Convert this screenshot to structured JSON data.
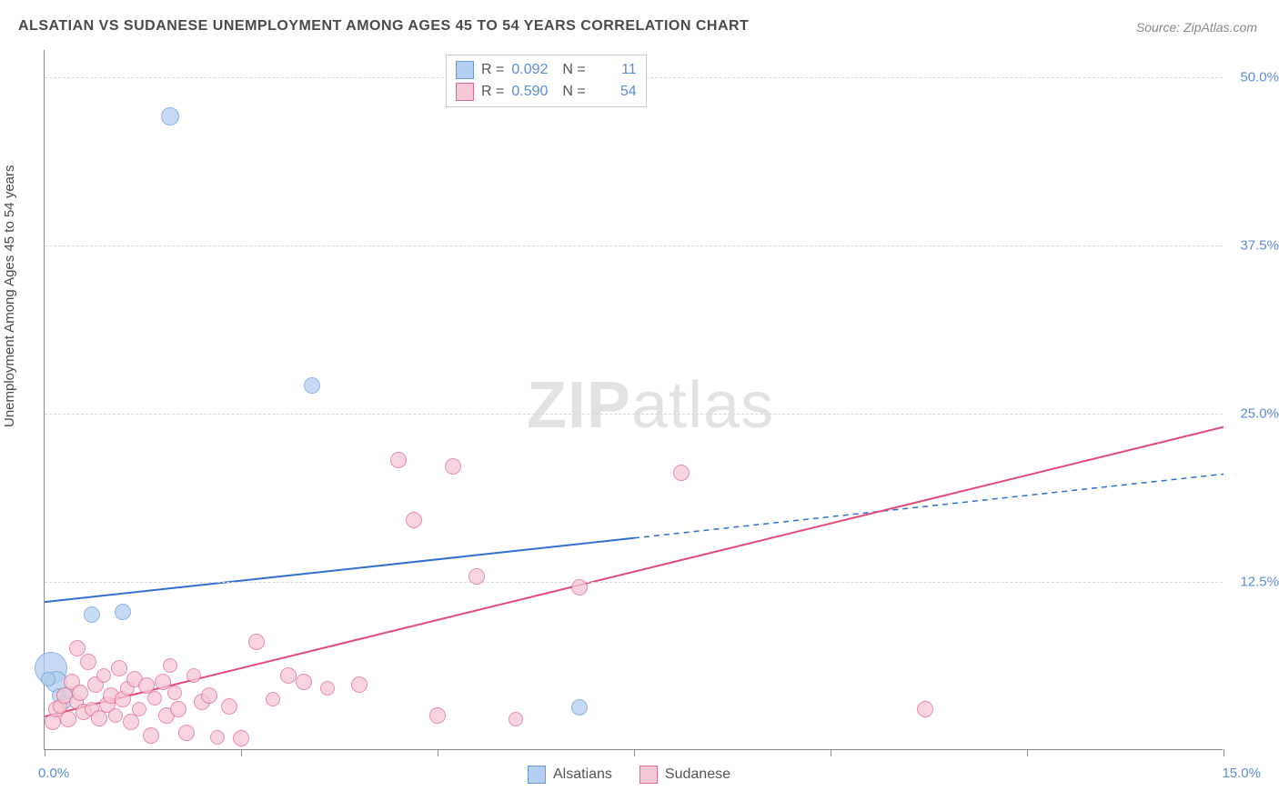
{
  "title": "ALSATIAN VS SUDANESE UNEMPLOYMENT AMONG AGES 45 TO 54 YEARS CORRELATION CHART",
  "source": "Source: ZipAtlas.com",
  "y_axis_label": "Unemployment Among Ages 45 to 54 years",
  "watermark": {
    "part1": "ZIP",
    "part2": "atlas"
  },
  "chart": {
    "type": "scatter",
    "xlim": [
      0,
      15
    ],
    "ylim": [
      0,
      52
    ],
    "x_ticks": [
      0,
      2.5,
      5,
      7.5,
      10,
      12.5,
      15
    ],
    "x_tick_labels": {
      "0": "0.0%",
      "15": "15.0%"
    },
    "y_ticks": [
      12.5,
      25,
      37.5,
      50
    ],
    "y_tick_labels": {
      "12.5": "12.5%",
      "25": "25.0%",
      "37.5": "37.5%",
      "50": "50.0%"
    },
    "background_color": "#ffffff",
    "grid_color": "#d8d8d8",
    "axis_color": "#888888",
    "tick_label_color": "#5b8dd6",
    "series": [
      {
        "name": "Alsatians",
        "color_fill": "#b3cef0",
        "color_stroke": "#6a9bd8",
        "r_value": "0.092",
        "n_value": "11",
        "trend": {
          "y_at_x0": 11.0,
          "y_at_x15": 20.5,
          "solid_until_x": 7.5,
          "color": "#2e6fd0",
          "width": 2
        },
        "points": [
          {
            "x": 1.6,
            "y": 47.0,
            "r": 10
          },
          {
            "x": 0.08,
            "y": 6.0,
            "r": 18
          },
          {
            "x": 0.15,
            "y": 5.0,
            "r": 12
          },
          {
            "x": 0.6,
            "y": 10.0,
            "r": 9
          },
          {
            "x": 1.0,
            "y": 10.2,
            "r": 9
          },
          {
            "x": 3.4,
            "y": 27.0,
            "r": 9
          },
          {
            "x": 6.8,
            "y": 3.1,
            "r": 9
          },
          {
            "x": 0.18,
            "y": 4.0,
            "r": 8
          },
          {
            "x": 0.25,
            "y": 3.5,
            "r": 8
          },
          {
            "x": 0.05,
            "y": 5.2,
            "r": 8
          },
          {
            "x": 0.3,
            "y": 4.2,
            "r": 7
          }
        ]
      },
      {
        "name": "Sudanese",
        "color_fill": "#f6c7d4",
        "color_stroke": "#e06a8e",
        "r_value": "0.590",
        "n_value": "54",
        "trend": {
          "y_at_x0": 2.5,
          "y_at_x15": 24.0,
          "solid_until_x": 15,
          "color": "#e34b7a",
          "width": 2
        },
        "points": [
          {
            "x": 0.1,
            "y": 2.0,
            "r": 9
          },
          {
            "x": 0.15,
            "y": 3.0,
            "r": 9
          },
          {
            "x": 0.2,
            "y": 3.2,
            "r": 8
          },
          {
            "x": 0.25,
            "y": 4.0,
            "r": 9
          },
          {
            "x": 0.3,
            "y": 2.2,
            "r": 9
          },
          {
            "x": 0.35,
            "y": 5.0,
            "r": 9
          },
          {
            "x": 0.4,
            "y": 3.5,
            "r": 8
          },
          {
            "x": 0.45,
            "y": 4.2,
            "r": 9
          },
          {
            "x": 0.5,
            "y": 2.8,
            "r": 9
          },
          {
            "x": 0.55,
            "y": 6.5,
            "r": 9
          },
          {
            "x": 0.6,
            "y": 3.0,
            "r": 8
          },
          {
            "x": 0.65,
            "y": 4.8,
            "r": 9
          },
          {
            "x": 0.7,
            "y": 2.3,
            "r": 9
          },
          {
            "x": 0.75,
            "y": 5.5,
            "r": 8
          },
          {
            "x": 0.8,
            "y": 3.3,
            "r": 9
          },
          {
            "x": 0.85,
            "y": 4.0,
            "r": 9
          },
          {
            "x": 0.9,
            "y": 2.5,
            "r": 8
          },
          {
            "x": 0.95,
            "y": 6.0,
            "r": 9
          },
          {
            "x": 1.0,
            "y": 3.7,
            "r": 9
          },
          {
            "x": 1.05,
            "y": 4.5,
            "r": 8
          },
          {
            "x": 1.1,
            "y": 2.0,
            "r": 9
          },
          {
            "x": 1.15,
            "y": 5.2,
            "r": 9
          },
          {
            "x": 1.2,
            "y": 3.0,
            "r": 8
          },
          {
            "x": 1.3,
            "y": 4.7,
            "r": 9
          },
          {
            "x": 1.35,
            "y": 1.0,
            "r": 9
          },
          {
            "x": 1.4,
            "y": 3.8,
            "r": 8
          },
          {
            "x": 1.5,
            "y": 5.0,
            "r": 9
          },
          {
            "x": 1.55,
            "y": 2.5,
            "r": 9
          },
          {
            "x": 1.65,
            "y": 4.2,
            "r": 8
          },
          {
            "x": 1.7,
            "y": 3.0,
            "r": 9
          },
          {
            "x": 1.8,
            "y": 1.2,
            "r": 9
          },
          {
            "x": 1.9,
            "y": 5.5,
            "r": 8
          },
          {
            "x": 2.0,
            "y": 3.5,
            "r": 9
          },
          {
            "x": 2.1,
            "y": 4.0,
            "r": 9
          },
          {
            "x": 2.2,
            "y": 0.9,
            "r": 8
          },
          {
            "x": 2.35,
            "y": 3.2,
            "r": 9
          },
          {
            "x": 2.5,
            "y": 0.8,
            "r": 9
          },
          {
            "x": 2.7,
            "y": 8.0,
            "r": 9
          },
          {
            "x": 2.9,
            "y": 3.7,
            "r": 8
          },
          {
            "x": 3.1,
            "y": 5.5,
            "r": 9
          },
          {
            "x": 3.3,
            "y": 5.0,
            "r": 9
          },
          {
            "x": 3.6,
            "y": 4.5,
            "r": 8
          },
          {
            "x": 4.0,
            "y": 4.8,
            "r": 9
          },
          {
            "x": 4.5,
            "y": 21.5,
            "r": 9
          },
          {
            "x": 4.7,
            "y": 17.0,
            "r": 9
          },
          {
            "x": 5.0,
            "y": 2.5,
            "r": 9
          },
          {
            "x": 5.2,
            "y": 21.0,
            "r": 9
          },
          {
            "x": 5.5,
            "y": 12.8,
            "r": 9
          },
          {
            "x": 6.0,
            "y": 2.2,
            "r": 8
          },
          {
            "x": 6.8,
            "y": 12.0,
            "r": 9
          },
          {
            "x": 8.1,
            "y": 20.5,
            "r": 9
          },
          {
            "x": 11.2,
            "y": 3.0,
            "r": 9
          },
          {
            "x": 0.42,
            "y": 7.5,
            "r": 9
          },
          {
            "x": 1.6,
            "y": 6.2,
            "r": 8
          }
        ]
      }
    ]
  },
  "legend_stats": {
    "r_label": "R =",
    "n_label": "N ="
  },
  "legend_series_labels": [
    "Alsatians",
    "Sudanese"
  ]
}
